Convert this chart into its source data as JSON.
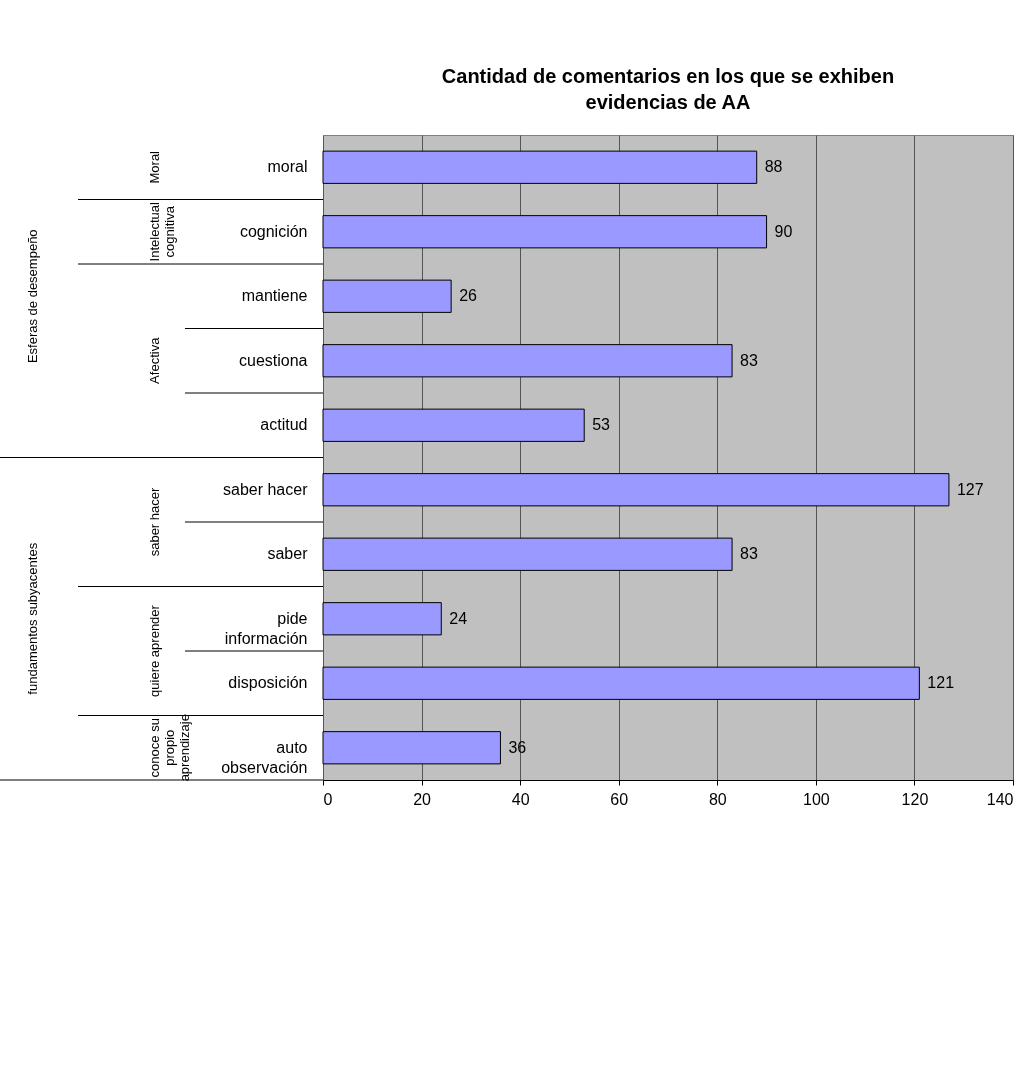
{
  "chart_data": {
    "type": "bar",
    "orientation": "horizontal",
    "title": "Cantidad de comentarios en los que se exhiben evidencias de AA",
    "categories": [
      "moral",
      "cognición",
      "mantiene",
      "cuestiona",
      "actitud",
      "saber hacer",
      "saber",
      "pide información",
      "disposición",
      "auto observación"
    ],
    "values": [
      88,
      90,
      26,
      83,
      53,
      127,
      83,
      24,
      121,
      36
    ],
    "color": "#9999ff",
    "xlim": [
      0,
      140
    ],
    "xticks": [
      0,
      20,
      40,
      60,
      80,
      100,
      120,
      140
    ],
    "grid": "x",
    "data_labels": true,
    "annotations": [
      "Moral",
      "Intelectual cognitiva",
      "Afectiva",
      "saber hacer",
      "quiere aprender",
      "conoce su propio aprendizaje",
      "Esferas de desempeño",
      "fundamentos subyacentes"
    ]
  }
}
